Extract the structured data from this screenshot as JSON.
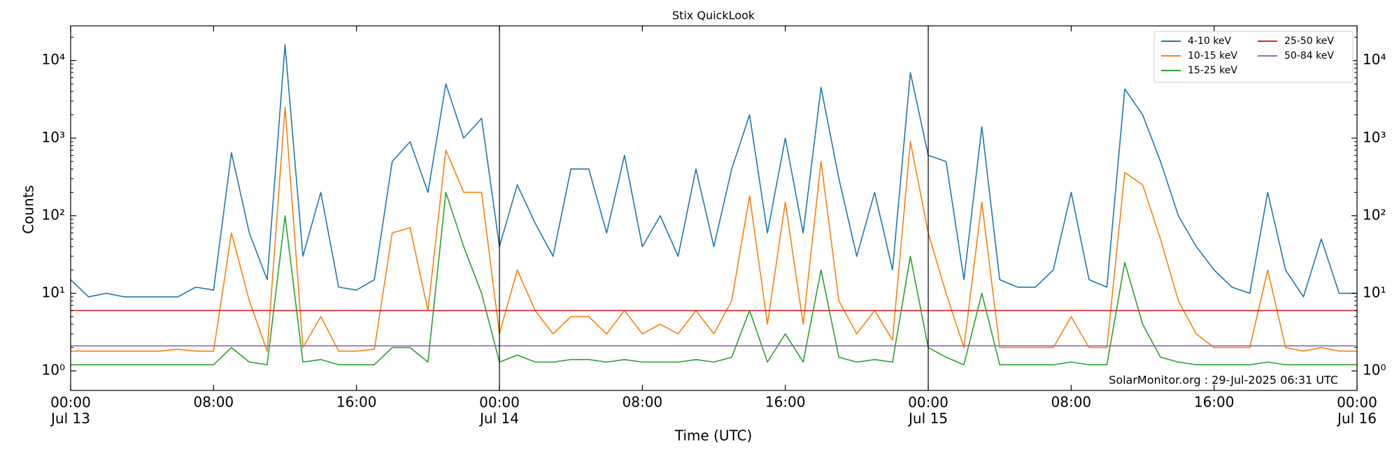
{
  "chart_data": {
    "type": "line",
    "title": "Stix QuickLook",
    "xlabel": "Time (UTC)",
    "ylabel": "Counts",
    "annotation": "SolarMonitor.org : 29-Jul-2025 06:31 UTC",
    "log_y": true,
    "legend": "upper right",
    "legend_columns": 2,
    "xlim": [
      "Jul 13 00:00",
      "Jul 16 00:00"
    ],
    "xticks": [
      {
        "value": "Jul 13 00:00",
        "label": "00:00\nJul 13"
      },
      {
        "value": "Jul 13 08:00",
        "label": "08:00"
      },
      {
        "value": "Jul 13 16:00",
        "label": "16:00"
      },
      {
        "value": "Jul 14 00:00",
        "label": "00:00\nJul 14"
      },
      {
        "value": "Jul 14 08:00",
        "label": "08:00"
      },
      {
        "value": "Jul 14 16:00",
        "label": "16:00"
      },
      {
        "value": "Jul 15 00:00",
        "label": "00:00\nJul 15"
      },
      {
        "value": "Jul 15 08:00",
        "label": "08:00"
      },
      {
        "value": "Jul 15 16:00",
        "label": "16:00"
      },
      {
        "value": "Jul 16 00:00",
        "label": "00:00\nJul 16"
      }
    ],
    "day_lines": [
      "Jul 14 00:00",
      "Jul 15 00:00"
    ],
    "ylim": [
      0.56,
      28000
    ],
    "yticks": [
      {
        "value": 1,
        "label": "10⁰"
      },
      {
        "value": 10,
        "label": "10¹"
      },
      {
        "value": 100,
        "label": "10²"
      },
      {
        "value": 1000,
        "label": "10³"
      },
      {
        "value": 10000,
        "label": "10⁴"
      }
    ],
    "x": [
      "Jul 13 00:00",
      "Jul 13 01:00",
      "Jul 13 02:00",
      "Jul 13 03:00",
      "Jul 13 04:00",
      "Jul 13 05:00",
      "Jul 13 06:00",
      "Jul 13 07:00",
      "Jul 13 08:00",
      "Jul 13 09:00",
      "Jul 13 10:00",
      "Jul 13 11:00",
      "Jul 13 12:00",
      "Jul 13 13:00",
      "Jul 13 14:00",
      "Jul 13 15:00",
      "Jul 13 16:00",
      "Jul 13 17:00",
      "Jul 13 18:00",
      "Jul 13 19:00",
      "Jul 13 20:00",
      "Jul 13 21:00",
      "Jul 13 22:00",
      "Jul 13 23:00",
      "Jul 14 00:00",
      "Jul 14 01:00",
      "Jul 14 02:00",
      "Jul 14 03:00",
      "Jul 14 04:00",
      "Jul 14 05:00",
      "Jul 14 06:00",
      "Jul 14 07:00",
      "Jul 14 08:00",
      "Jul 14 09:00",
      "Jul 14 10:00",
      "Jul 14 11:00",
      "Jul 14 12:00",
      "Jul 14 13:00",
      "Jul 14 14:00",
      "Jul 14 15:00",
      "Jul 14 16:00",
      "Jul 14 17:00",
      "Jul 14 18:00",
      "Jul 14 19:00",
      "Jul 14 20:00",
      "Jul 14 21:00",
      "Jul 14 22:00",
      "Jul 14 23:00",
      "Jul 15 00:00",
      "Jul 15 01:00",
      "Jul 15 02:00",
      "Jul 15 03:00",
      "Jul 15 04:00",
      "Jul 15 05:00",
      "Jul 15 06:00",
      "Jul 15 07:00",
      "Jul 15 08:00",
      "Jul 15 09:00",
      "Jul 15 10:00",
      "Jul 15 11:00",
      "Jul 15 12:00",
      "Jul 15 13:00",
      "Jul 15 14:00",
      "Jul 15 15:00",
      "Jul 15 16:00",
      "Jul 15 17:00",
      "Jul 15 18:00",
      "Jul 15 19:00",
      "Jul 15 20:00",
      "Jul 15 21:00",
      "Jul 15 22:00",
      "Jul 15 23:00",
      "Jul 16 00:00"
    ],
    "series": [
      {
        "name": "4-10 keV",
        "color": "#1f77b4",
        "values": [
          15,
          9,
          10,
          9,
          9,
          9,
          9,
          12,
          11,
          650,
          60,
          15,
          16000,
          30,
          200,
          12,
          11,
          15,
          500,
          900,
          200,
          5000,
          1000,
          1800,
          40,
          250,
          80,
          30,
          400,
          400,
          60,
          600,
          40,
          100,
          30,
          400,
          40,
          400,
          2000,
          60,
          1000,
          60,
          4500,
          300,
          30,
          200,
          20,
          7000,
          600,
          500,
          15,
          1400,
          15,
          12,
          12,
          20,
          200,
          15,
          12,
          4300,
          2000,
          500,
          100,
          40,
          20,
          12,
          10,
          200,
          20,
          9,
          50,
          10,
          10
        ]
      },
      {
        "name": "10-15 keV",
        "color": "#ff7f0e",
        "values": [
          1.8,
          1.8,
          1.8,
          1.8,
          1.8,
          1.8,
          1.9,
          1.8,
          1.8,
          60,
          8,
          1.8,
          2500,
          2,
          5,
          1.8,
          1.8,
          1.9,
          60,
          70,
          6,
          700,
          200,
          200,
          3,
          20,
          6,
          3,
          5,
          5,
          3,
          6,
          3,
          4,
          3,
          6,
          3,
          8,
          180,
          4,
          150,
          4,
          500,
          8,
          3,
          6,
          2.5,
          900,
          60,
          10,
          2,
          150,
          2,
          2,
          2,
          2,
          5,
          2,
          2,
          360,
          250,
          50,
          8,
          3,
          2,
          2,
          2,
          20,
          2,
          1.8,
          2,
          1.8,
          1.8
        ]
      },
      {
        "name": "15-25 keV",
        "color": "#2ca02c",
        "values": [
          1.2,
          1.2,
          1.2,
          1.2,
          1.2,
          1.2,
          1.2,
          1.2,
          1.2,
          2,
          1.3,
          1.2,
          100,
          1.3,
          1.4,
          1.2,
          1.2,
          1.2,
          2,
          2,
          1.3,
          200,
          40,
          10,
          1.3,
          1.6,
          1.3,
          1.3,
          1.4,
          1.4,
          1.3,
          1.4,
          1.3,
          1.3,
          1.3,
          1.4,
          1.3,
          1.5,
          6,
          1.3,
          3,
          1.3,
          20,
          1.5,
          1.3,
          1.4,
          1.3,
          30,
          2,
          1.5,
          1.2,
          10,
          1.2,
          1.2,
          1.2,
          1.2,
          1.3,
          1.2,
          1.2,
          25,
          4,
          1.5,
          1.3,
          1.2,
          1.2,
          1.2,
          1.2,
          1.3,
          1.2,
          1.2,
          1.2,
          1.2,
          1.2
        ]
      },
      {
        "name": "25-50 keV",
        "color": "#d62728",
        "values": [
          6,
          6,
          6,
          6,
          6,
          6,
          6,
          6,
          6,
          6,
          6,
          6,
          6,
          6,
          6,
          6,
          6,
          6,
          6,
          6,
          6,
          6,
          6,
          6,
          6,
          6,
          6,
          6,
          6,
          6,
          6,
          6,
          6,
          6,
          6,
          6,
          6,
          6,
          6,
          6,
          6,
          6,
          6,
          6,
          6,
          6,
          6,
          6,
          6,
          6,
          6,
          6,
          6,
          6,
          6,
          6,
          6,
          6,
          6,
          6,
          6,
          6,
          6,
          6,
          6,
          6,
          6,
          6,
          6,
          6,
          6,
          6,
          6
        ]
      },
      {
        "name": "50-84 keV",
        "color": "#9467bd",
        "values": [
          2.1,
          2.1,
          2.1,
          2.1,
          2.1,
          2.1,
          2.1,
          2.1,
          2.1,
          2.1,
          2.1,
          2.1,
          2.1,
          2.1,
          2.1,
          2.1,
          2.1,
          2.1,
          2.1,
          2.1,
          2.1,
          2.1,
          2.1,
          2.1,
          2.1,
          2.1,
          2.1,
          2.1,
          2.1,
          2.1,
          2.1,
          2.1,
          2.1,
          2.1,
          2.1,
          2.1,
          2.1,
          2.1,
          2.1,
          2.1,
          2.1,
          2.1,
          2.1,
          2.1,
          2.1,
          2.1,
          2.1,
          2.1,
          2.1,
          2.1,
          2.1,
          2.1,
          2.1,
          2.1,
          2.1,
          2.1,
          2.1,
          2.1,
          2.1,
          2.1,
          2.1,
          2.1,
          2.1,
          2.1,
          2.1,
          2.1,
          2.1,
          2.1,
          2.1,
          2.1,
          2.1,
          2.1,
          2.1
        ]
      }
    ]
  }
}
